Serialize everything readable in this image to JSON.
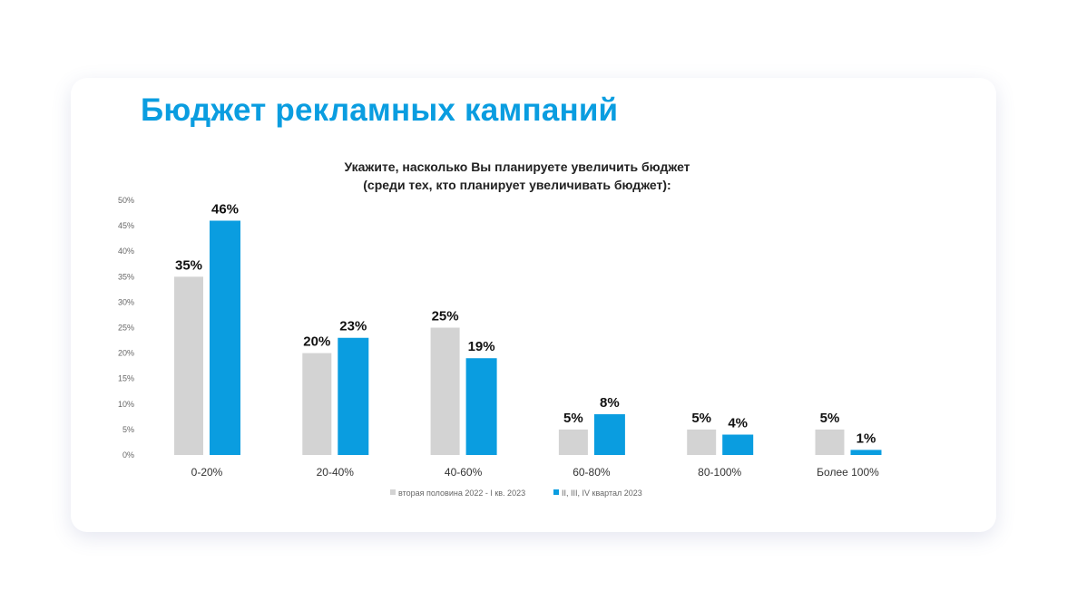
{
  "chart_data": {
    "type": "bar",
    "title": "Бюджет рекламных кампаний",
    "subtitle_lines": [
      "Укажите, насколько Вы планируете увеличить бюджет",
      "(среди тех, кто планирует увеличивать бюджет):"
    ],
    "categories": [
      "0-20%",
      "20-40%",
      "40-60%",
      "60-80%",
      "80-100%",
      "Более 100%"
    ],
    "series": [
      {
        "name": "вторая половина 2022 - I кв. 2023",
        "color": "#d3d3d3",
        "values": [
          35,
          20,
          25,
          5,
          5,
          5
        ]
      },
      {
        "name": "II, III, IV квартал 2023",
        "color": "#0a9de0",
        "values": [
          46,
          23,
          19,
          8,
          4,
          1
        ]
      }
    ],
    "ylim": [
      0,
      50
    ],
    "yticks": [
      "0%",
      "5%",
      "10%",
      "15%",
      "20%",
      "25%",
      "30%",
      "35%",
      "40%",
      "45%",
      "50%"
    ],
    "legend_position": "bottom",
    "grid": false
  }
}
